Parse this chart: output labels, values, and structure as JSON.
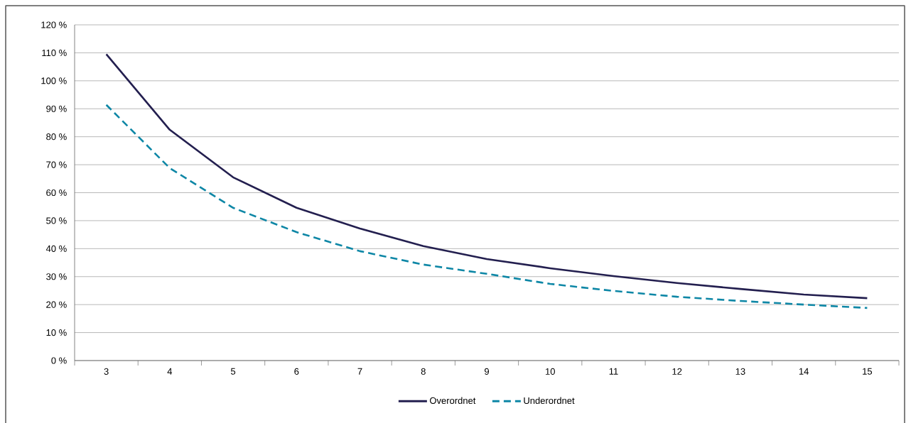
{
  "chart_data": {
    "type": "line",
    "categories": [
      "3",
      "4",
      "5",
      "6",
      "7",
      "8",
      "9",
      "10",
      "11",
      "12",
      "13",
      "14",
      "15"
    ],
    "series": [
      {
        "name": "Overordnet",
        "color": "#231f4f",
        "line_style": "solid",
        "values": [
          109.5,
          82.5,
          65.5,
          54.6,
          47.2,
          40.9,
          36.3,
          33,
          30.2,
          27.7,
          25.6,
          23.6,
          22.3
        ]
      },
      {
        "name": "Underordnet",
        "color": "#0e87a6",
        "line_style": "dashed",
        "values": [
          91.4,
          68.8,
          54.6,
          45.9,
          39.1,
          34.3,
          31,
          27.4,
          24.9,
          22.8,
          21.3,
          20,
          18.8
        ]
      }
    ],
    "ylim": [
      0,
      120
    ],
    "yticks": [
      {
        "value": 0,
        "label": "0 %"
      },
      {
        "value": 10,
        "label": "10 %"
      },
      {
        "value": 20,
        "label": "20 %"
      },
      {
        "value": 30,
        "label": "30 %"
      },
      {
        "value": 40,
        "label": "40 %"
      },
      {
        "value": 50,
        "label": "50 %"
      },
      {
        "value": 60,
        "label": "60 %"
      },
      {
        "value": 70,
        "label": "70 %"
      },
      {
        "value": 80,
        "label": "80 %"
      },
      {
        "value": 90,
        "label": "90 %"
      },
      {
        "value": 100,
        "label": "100 %"
      },
      {
        "value": 110,
        "label": "110 %"
      },
      {
        "value": 120,
        "label": "120 %"
      }
    ],
    "grid": "y",
    "legend": "bottom",
    "marker": "none"
  }
}
